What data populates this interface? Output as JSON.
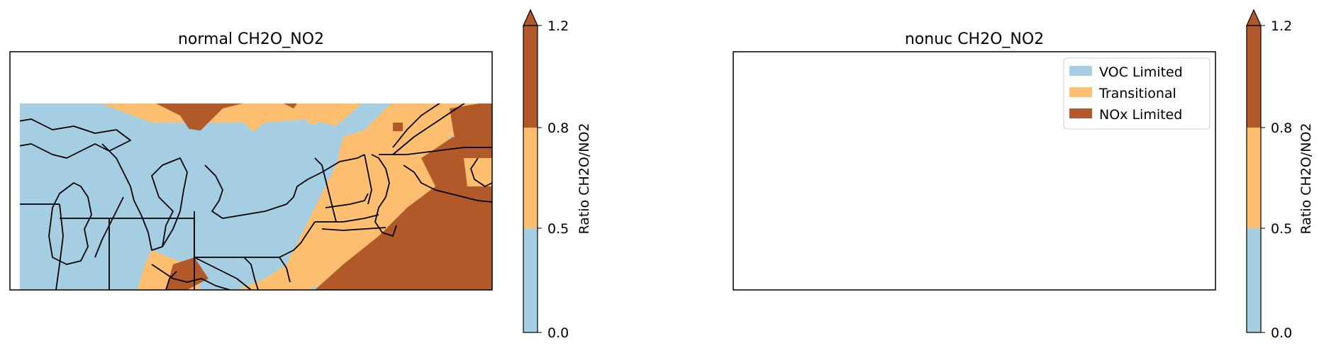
{
  "colors": {
    "voc": "#a6cee3",
    "transitional": "#fdbf6f",
    "nox": "#b15928",
    "border": "#000000"
  },
  "panels": [
    {
      "title": "normal CH2O_NO2",
      "colorbar": {
        "label": "Ratio CH2O/NO2",
        "ticks": [
          "0.0",
          "0.5",
          "0.8",
          "1.2"
        ],
        "extend": "max"
      }
    },
    {
      "title": "nonuc CH2O_NO2",
      "colorbar": {
        "label": "Ratio CH2O/NO2",
        "ticks": [
          "0.0",
          "0.5",
          "0.8",
          "1.2"
        ],
        "extend": "max"
      },
      "legend": {
        "position": "upper-right",
        "items": [
          "VOC Limited",
          "Transitional",
          "NOx Limited"
        ]
      }
    }
  ]
}
